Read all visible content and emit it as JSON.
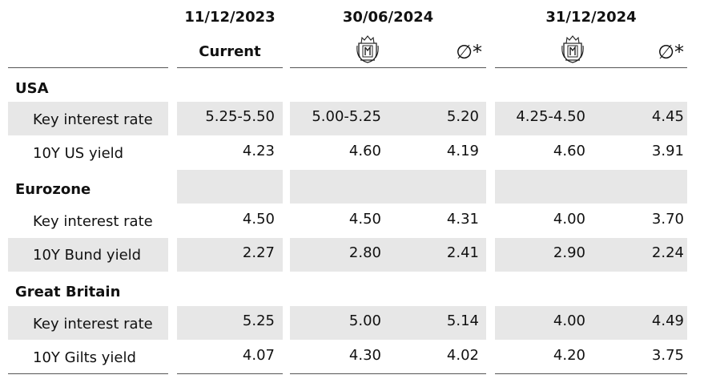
{
  "header": {
    "date_current": "11/12/2023",
    "date_mid": "30/06/2024",
    "date_end": "31/12/2024",
    "current_label": "Current",
    "avg_symbol": "∅*"
  },
  "sections": [
    {
      "name": "USA",
      "rows": [
        {
          "label": "Key interest rate",
          "current": "5.25-5.50",
          "mid_forecast": "5.00-5.25",
          "mid_avg": "5.20",
          "end_forecast": "4.25-4.50",
          "end_avg": "4.45"
        },
        {
          "label": "10Y US yield",
          "current": "4.23",
          "mid_forecast": "4.60",
          "mid_avg": "4.19",
          "end_forecast": "4.60",
          "end_avg": "3.91"
        }
      ]
    },
    {
      "name": "Eurozone",
      "rows": [
        {
          "label": "Key interest rate",
          "current": "4.50",
          "mid_forecast": "4.50",
          "mid_avg": "4.31",
          "end_forecast": "4.00",
          "end_avg": "3.70"
        },
        {
          "label": "10Y Bund yield",
          "current": "2.27",
          "mid_forecast": "2.80",
          "mid_avg": "2.41",
          "end_forecast": "2.90",
          "end_avg": "2.24"
        }
      ]
    },
    {
      "name": "Great Britain",
      "rows": [
        {
          "label": "Key interest rate",
          "current": "5.25",
          "mid_forecast": "5.00",
          "mid_avg": "5.14",
          "end_forecast": "4.00",
          "end_avg": "4.49"
        },
        {
          "label": "10Y Gilts yield",
          "current": "4.07",
          "mid_forecast": "4.30",
          "mid_avg": "4.02",
          "end_forecast": "4.20",
          "end_avg": "3.75"
        }
      ]
    }
  ],
  "icons": {
    "forecast": "crest-logo-icon"
  },
  "colors": {
    "band": "#e7e7e7",
    "rule": "#555555",
    "text": "#111111"
  }
}
